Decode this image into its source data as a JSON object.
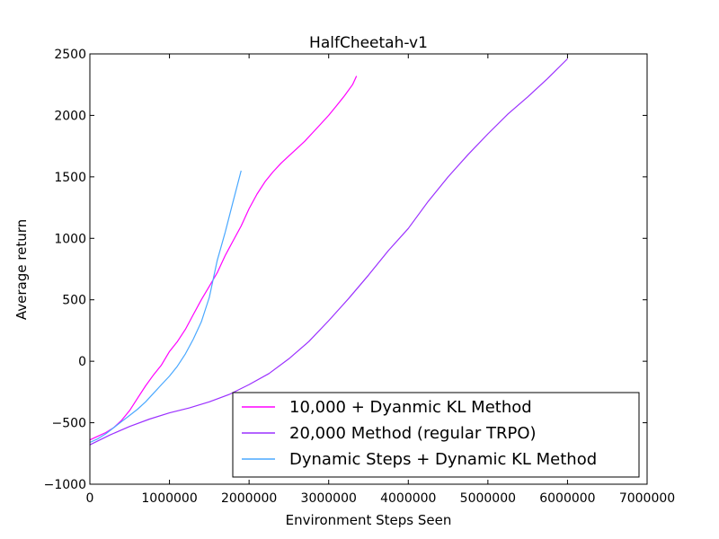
{
  "chart_data": {
    "type": "line",
    "title": "HalfCheetah-v1",
    "xlabel": "Environment Steps Seen",
    "ylabel": "Average return",
    "xlim": [
      0,
      7000000
    ],
    "ylim": [
      -1000,
      2500
    ],
    "xticks": [
      0,
      1000000,
      2000000,
      3000000,
      4000000,
      5000000,
      6000000,
      7000000
    ],
    "xtick_labels": [
      "0",
      "1000000",
      "2000000",
      "3000000",
      "4000000",
      "5000000",
      "6000000",
      "7000000"
    ],
    "yticks": [
      -1000,
      -500,
      0,
      500,
      1000,
      1500,
      2000,
      2500
    ],
    "ytick_labels": [
      "−1000",
      "−500",
      "0",
      "500",
      "1000",
      "1500",
      "2000",
      "2500"
    ],
    "grid": false,
    "legend_position": "lower-right",
    "series": [
      {
        "name": "10,000 + Dyanmic KL Method",
        "color": "#ff00ff",
        "x": [
          0,
          100000,
          200000,
          300000,
          400000,
          500000,
          600000,
          700000,
          800000,
          900000,
          1000000,
          1100000,
          1200000,
          1300000,
          1400000,
          1500000,
          1600000,
          1700000,
          1800000,
          1900000,
          2000000,
          2100000,
          2200000,
          2300000,
          2400000,
          2500000,
          2600000,
          2700000,
          2800000,
          2900000,
          3000000,
          3100000,
          3200000,
          3300000,
          3350000
        ],
        "y": [
          -640,
          -610,
          -580,
          -540,
          -480,
          -400,
          -300,
          -200,
          -110,
          -30,
          80,
          160,
          260,
          380,
          500,
          610,
          720,
          860,
          980,
          1100,
          1240,
          1360,
          1460,
          1540,
          1610,
          1670,
          1730,
          1790,
          1860,
          1930,
          2000,
          2080,
          2160,
          2250,
          2320
        ]
      },
      {
        "name": "20,000 Method (regular TRPO)",
        "color": "#9b30ff",
        "x": [
          0,
          250000,
          500000,
          750000,
          1000000,
          1250000,
          1500000,
          1750000,
          2000000,
          2250000,
          2500000,
          2750000,
          3000000,
          3250000,
          3500000,
          3750000,
          4000000,
          4250000,
          4500000,
          4750000,
          5000000,
          5250000,
          5500000,
          5750000,
          6000000
        ],
        "y": [
          -680,
          -600,
          -530,
          -470,
          -420,
          -380,
          -330,
          -270,
          -190,
          -100,
          20,
          160,
          330,
          510,
          700,
          900,
          1080,
          1300,
          1500,
          1680,
          1850,
          2010,
          2150,
          2300,
          2460
        ]
      },
      {
        "name": "Dynamic Steps + Dynamic KL Method",
        "color": "#4aa8ff",
        "x": [
          0,
          100000,
          200000,
          300000,
          400000,
          500000,
          600000,
          700000,
          800000,
          900000,
          1000000,
          1100000,
          1200000,
          1300000,
          1400000,
          1500000,
          1600000,
          1700000,
          1800000,
          1900000
        ],
        "y": [
          -660,
          -630,
          -590,
          -540,
          -490,
          -440,
          -390,
          -330,
          -260,
          -190,
          -120,
          -40,
          60,
          180,
          320,
          520,
          820,
          1050,
          1300,
          1550
        ]
      }
    ]
  }
}
